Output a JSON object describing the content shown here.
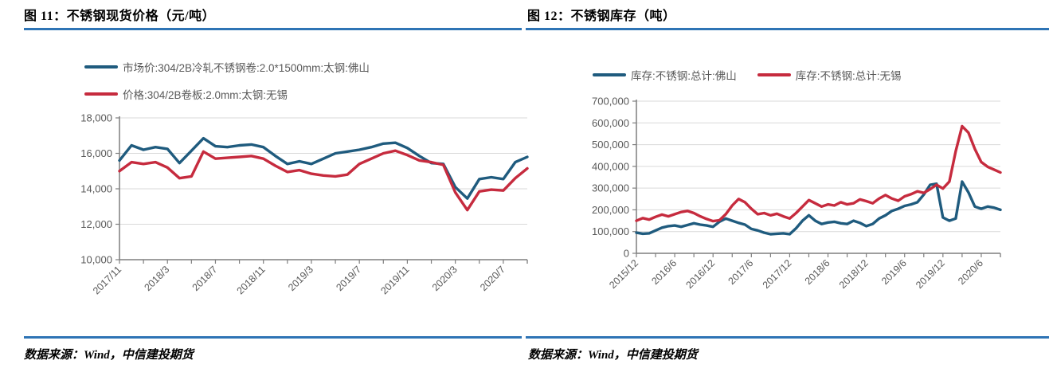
{
  "page": {
    "background": "#ffffff",
    "accent_rule_color": "#2e74b5"
  },
  "figures": [
    {
      "title": "图 11：不锈钢现货价格（元/吨）",
      "source": "数据来源：Wind，中信建投期货"
    },
    {
      "title": "图 12：不锈钢库存（吨）",
      "source": "数据来源：Wind，中信建投期货"
    }
  ],
  "chart_data": [
    {
      "type": "line",
      "title": "不锈钢现货价格（元/吨）",
      "legend_position": "top-left-stacked",
      "grid": "horizontal",
      "ylim": [
        10000,
        18000
      ],
      "yticks": [
        10000,
        12000,
        14000,
        16000,
        18000
      ],
      "ytick_labels": [
        "10,000",
        "12,000",
        "14,000",
        "16,000",
        "18,000"
      ],
      "x": [
        "2017/11",
        "2017/12",
        "2018/1",
        "2018/2",
        "2018/3",
        "2018/4",
        "2018/5",
        "2018/6",
        "2018/7",
        "2018/8",
        "2018/9",
        "2018/10",
        "2018/11",
        "2018/12",
        "2019/1",
        "2019/2",
        "2019/3",
        "2019/4",
        "2019/5",
        "2019/6",
        "2019/7",
        "2019/8",
        "2019/9",
        "2019/10",
        "2019/11",
        "2019/12",
        "2020/1",
        "2020/2",
        "2020/3",
        "2020/4",
        "2020/5",
        "2020/6",
        "2020/7",
        "2020/8",
        "2020/9"
      ],
      "x_axis_labels": [
        "2017/11",
        "2018/3",
        "2018/7",
        "2018/11",
        "2019/3",
        "2019/7",
        "2019/11",
        "2020/3",
        "2020/7"
      ],
      "x_minor_tick_every_months": 2,
      "series": [
        {
          "name": "市场价:304/2B冷轧不锈钢卷:2.0*1500mm:太钢:佛山",
          "color": "#1f5b7e",
          "values": [
            15600,
            16450,
            16200,
            16350,
            16250,
            15450,
            16150,
            16850,
            16400,
            16350,
            16450,
            16500,
            16350,
            15850,
            15400,
            15550,
            15400,
            15700,
            16000,
            16100,
            16200,
            16350,
            16550,
            16600,
            16300,
            15850,
            15450,
            15400,
            14100,
            13450,
            14550,
            14650,
            14550,
            15500,
            15800
          ]
        },
        {
          "name": "价格:304/2B卷板:2.0mm:太钢:无锡",
          "color": "#c62b3e",
          "values": [
            15000,
            15500,
            15400,
            15500,
            15200,
            14600,
            14700,
            16100,
            15700,
            15750,
            15800,
            15850,
            15700,
            15300,
            14950,
            15050,
            14850,
            14750,
            14700,
            14800,
            15400,
            15700,
            16000,
            16150,
            15900,
            15600,
            15500,
            15350,
            13800,
            12800,
            13850,
            13950,
            13900,
            14600,
            15150
          ]
        }
      ]
    },
    {
      "type": "line",
      "title": "不锈钢库存（吨）",
      "legend_position": "top-row",
      "grid": "horizontal",
      "ylim": [
        0,
        700000
      ],
      "yticks": [
        0,
        100000,
        200000,
        300000,
        400000,
        500000,
        600000,
        700000
      ],
      "ytick_labels": [
        "0",
        "100,000",
        "200,000",
        "300,000",
        "400,000",
        "500,000",
        "600,000",
        "700,000"
      ],
      "x": [
        "2015/12",
        "2016/1",
        "2016/2",
        "2016/3",
        "2016/4",
        "2016/5",
        "2016/6",
        "2016/7",
        "2016/8",
        "2016/9",
        "2016/10",
        "2016/11",
        "2016/12",
        "2017/1",
        "2017/2",
        "2017/3",
        "2017/4",
        "2017/5",
        "2017/6",
        "2017/7",
        "2017/8",
        "2017/9",
        "2017/10",
        "2017/11",
        "2017/12",
        "2018/1",
        "2018/2",
        "2018/3",
        "2018/4",
        "2018/5",
        "2018/6",
        "2018/7",
        "2018/8",
        "2018/9",
        "2018/10",
        "2018/11",
        "2018/12",
        "2019/1",
        "2019/2",
        "2019/3",
        "2019/4",
        "2019/5",
        "2019/6",
        "2019/7",
        "2019/8",
        "2019/9",
        "2019/10",
        "2019/11",
        "2019/12",
        "2020/1",
        "2020/2",
        "2020/3",
        "2020/4",
        "2020/5",
        "2020/6",
        "2020/7",
        "2020/8",
        "2020/9"
      ],
      "x_axis_labels": [
        "2015/12",
        "2016/6",
        "2016/12",
        "2017/6",
        "2017/12",
        "2018/6",
        "2018/12",
        "2019/6",
        "2019/12",
        "2020/6"
      ],
      "x_minor_tick_every_months": 3,
      "series": [
        {
          "name": "库存:不锈钢:总计:佛山",
          "color": "#1f5b7e",
          "values": [
            95000,
            90000,
            92000,
            105000,
            118000,
            125000,
            128000,
            122000,
            130000,
            138000,
            132000,
            128000,
            122000,
            145000,
            160000,
            150000,
            140000,
            132000,
            112000,
            105000,
            95000,
            88000,
            90000,
            92000,
            88000,
            115000,
            150000,
            175000,
            150000,
            135000,
            142000,
            145000,
            138000,
            135000,
            150000,
            140000,
            125000,
            135000,
            160000,
            175000,
            195000,
            205000,
            218000,
            225000,
            235000,
            270000,
            315000,
            320000,
            165000,
            150000,
            160000,
            330000,
            280000,
            215000,
            205000,
            215000,
            210000,
            200000
          ]
        },
        {
          "name": "库存:不锈钢:总计:无锡",
          "color": "#c62b3e",
          "values": [
            150000,
            162000,
            155000,
            168000,
            178000,
            170000,
            180000,
            190000,
            195000,
            185000,
            170000,
            158000,
            148000,
            152000,
            180000,
            220000,
            250000,
            235000,
            205000,
            180000,
            185000,
            175000,
            182000,
            170000,
            160000,
            185000,
            215000,
            245000,
            230000,
            215000,
            225000,
            220000,
            235000,
            225000,
            230000,
            248000,
            240000,
            230000,
            252000,
            268000,
            252000,
            242000,
            262000,
            272000,
            285000,
            278000,
            295000,
            315000,
            298000,
            330000,
            470000,
            585000,
            555000,
            480000,
            420000,
            398000,
            385000,
            372000
          ]
        }
      ]
    }
  ]
}
